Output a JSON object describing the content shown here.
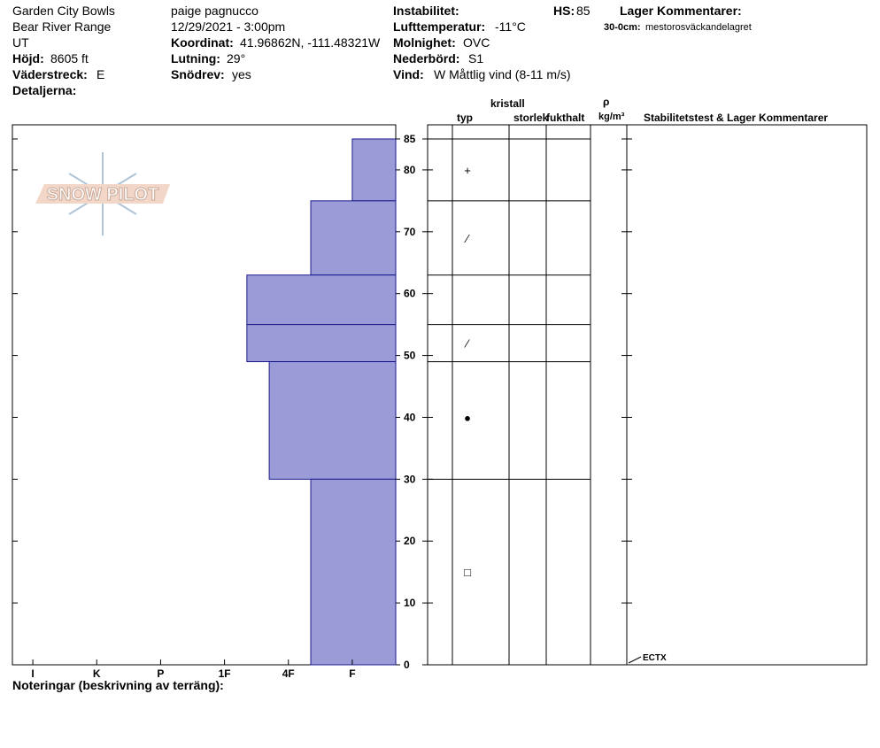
{
  "header": {
    "location": "Garden City Bowls",
    "range": "Bear River Range",
    "state": "UT",
    "elevation_label": "Höjd:",
    "elevation": "8605 ft",
    "aspect_label": "Väderstreck:",
    "aspect": "E",
    "details_label": "Detaljerna:",
    "observer": "paige pagnucco",
    "datetime": "12/29/2021 - 3:00pm",
    "coord_label": "Koordinat:",
    "coords": "41.96862N, -111.48321W",
    "slope_label": "Lutning:",
    "slope": "29°",
    "wind_loading_label": "Snödrev:",
    "wind_loading": "yes",
    "instability_label": "Instabilitet:",
    "air_temp_label": "Lufttemperatur:",
    "air_temp": "-11°C",
    "sky_label": "Molnighet:",
    "sky": "OVC",
    "precip_label": "Nederbörd:",
    "precip": "S1",
    "wind_label": "Vind:",
    "wind": "W Måttlig vind (8-11 m/s)",
    "hs_label": "HS:",
    "hs": "85",
    "layer_comments_label": "Lager Kommentarer:",
    "comment_range": "30-0cm:",
    "comment": "mestorosväckandelagret"
  },
  "logo": "SNOW PILOT",
  "chart_data": {
    "type": "bar",
    "color": "#9b9bd7",
    "xlim": [
      0.32,
      6.32
    ],
    "xticks": [
      {
        "value": 6,
        "label": "I"
      },
      {
        "value": 5,
        "label": "K"
      },
      {
        "value": 4,
        "label": "P"
      },
      {
        "value": 3,
        "label": "1F"
      },
      {
        "value": 2,
        "label": "4F"
      },
      {
        "value": 1,
        "label": "F"
      }
    ],
    "ylim": [
      0,
      87
    ],
    "yticks": [
      0,
      10,
      20,
      30,
      40,
      50,
      60,
      70,
      80,
      85
    ],
    "layers": [
      {
        "top": 85,
        "bottom": 75,
        "hardness": 1
      },
      {
        "top": 75,
        "bottom": 63,
        "hardness": 1.65
      },
      {
        "top": 63,
        "bottom": 55,
        "hardness": 2.65
      },
      {
        "top": 55,
        "bottom": 49,
        "hardness": 2.65
      },
      {
        "top": 49,
        "bottom": 30,
        "hardness": 2.3
      },
      {
        "top": 30,
        "bottom": 0,
        "hardness": 1.65
      }
    ],
    "columns": {
      "crystal": "kristall",
      "type": "typ",
      "size": "storlek",
      "moisture": "fukthalt",
      "rho": "ρ",
      "density_unit": "kg/m³",
      "stability": "Stabilitetstest & Lager Kommentarer"
    },
    "grains": [
      {
        "depth": 80,
        "symbol": "+"
      },
      {
        "depth": 69,
        "symbol": "⁄"
      },
      {
        "depth": 52,
        "symbol": "⁄"
      },
      {
        "depth": 40,
        "symbol": "●"
      },
      {
        "depth": 15,
        "symbol": "□"
      }
    ],
    "tests": [
      {
        "depth": 0,
        "label": "ECTX"
      }
    ]
  },
  "footer": "Noteringar (beskrivning av terräng):"
}
